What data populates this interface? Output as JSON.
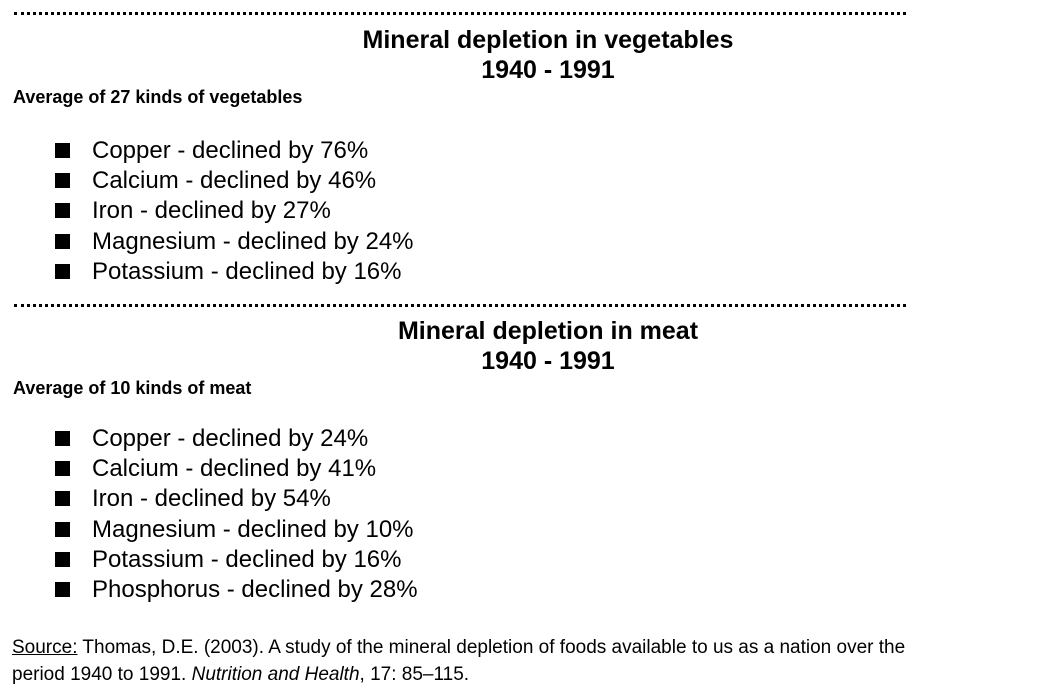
{
  "vegetables": {
    "title": "Mineral depletion in vegetables",
    "years": "1940 - 1991",
    "subtitle": "Average of 27 kinds of vegetables",
    "items": [
      "Copper - declined by 76%",
      "Calcium - declined by 46%",
      "Iron - declined by 27%",
      "Magnesium - declined by 24%",
      "Potassium - declined by 16%"
    ]
  },
  "meat": {
    "title": "Mineral depletion in meat",
    "years": "1940 - 1991",
    "subtitle": "Average of 10 kinds of meat",
    "items": [
      "Copper - declined by 24%",
      "Calcium - declined by 41%",
      "Iron - declined by 54%",
      "Magnesium - declined by 10%",
      "Potassium - declined by 16%",
      "Phosphorus - declined by 28%"
    ]
  },
  "source": {
    "label": "Source:",
    "text_line1": " Thomas, D.E. (2003). A study of the mineral depletion of foods available to us as a nation over the",
    "text_line2_prefix": "period 1940 to 1991. ",
    "journal": "Nutrition and Health",
    "text_line2_suffix": ", 17: 85–115."
  }
}
